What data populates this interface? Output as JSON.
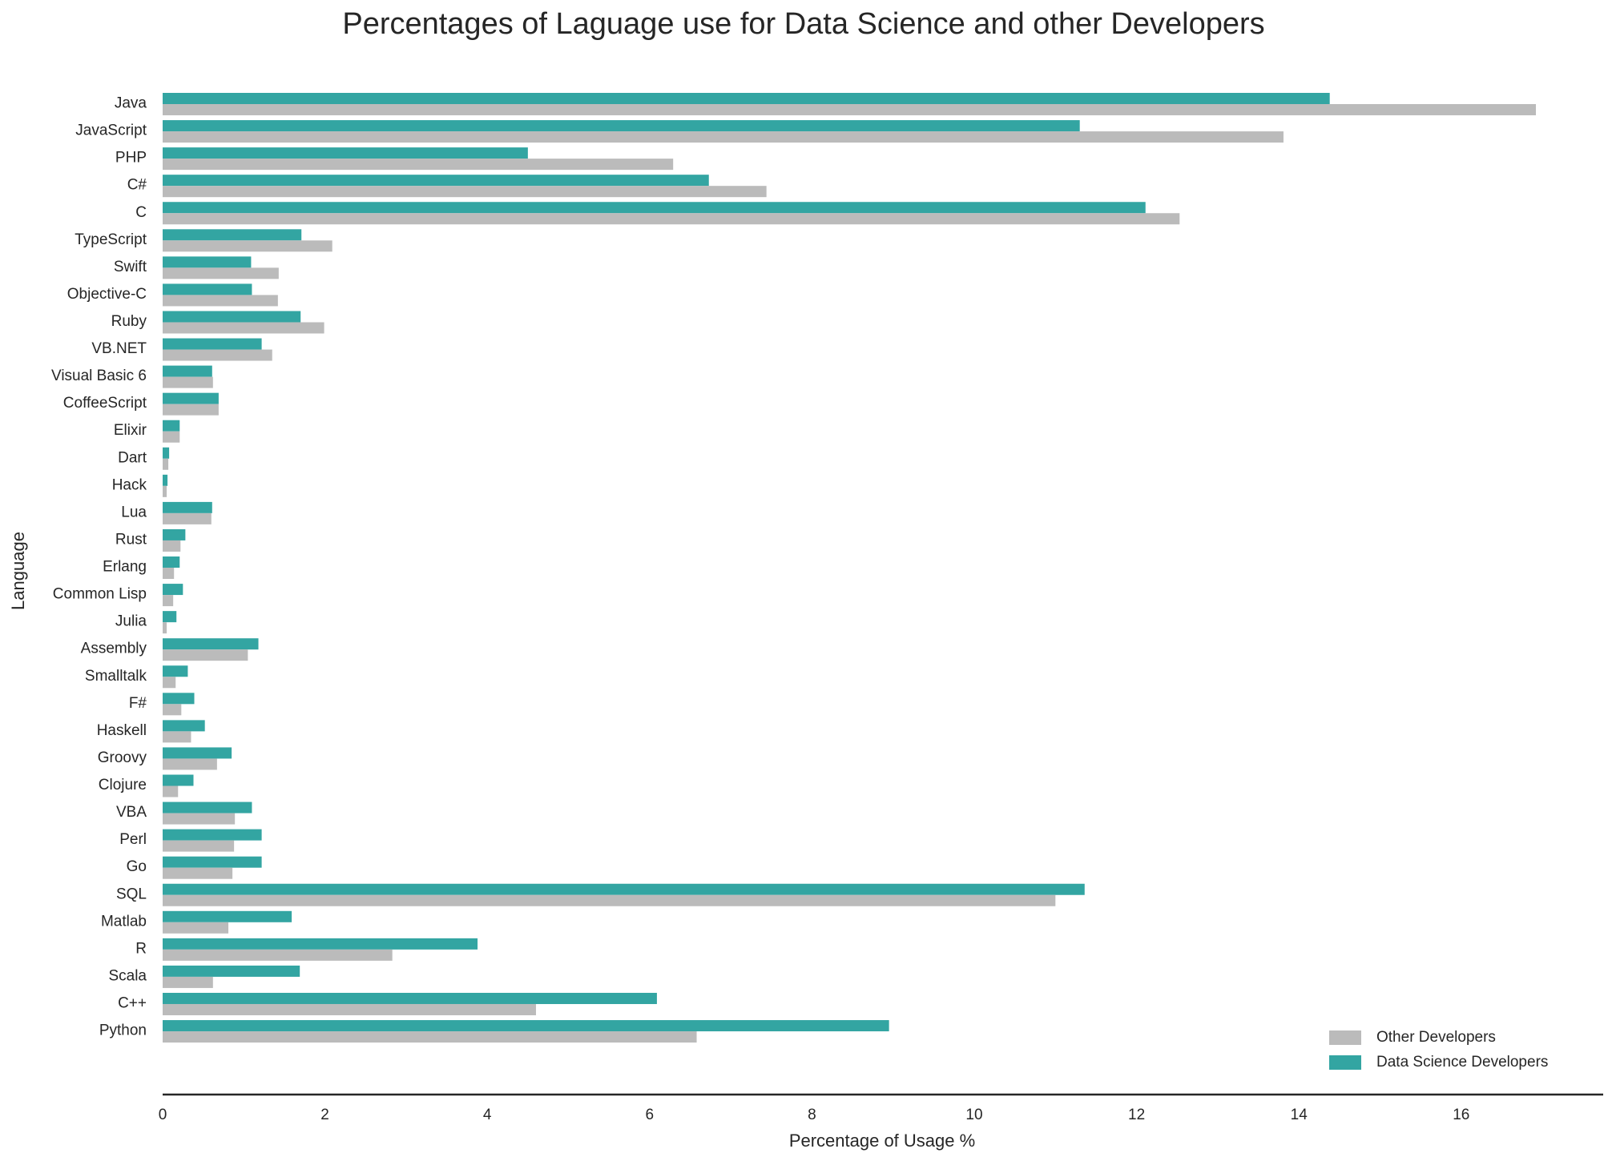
{
  "chart_data": {
    "type": "bar",
    "orientation": "horizontal",
    "title": "Percentages of Laguage use for Data Science and other Developers",
    "xlabel": "Percentage of Usage %",
    "ylabel": "Language",
    "xlim": [
      0,
      17.6
    ],
    "xticks": [
      0,
      2,
      4,
      6,
      8,
      10,
      12,
      14,
      16
    ],
    "grid": false,
    "legend_position": "bottom-right",
    "categories": [
      "Java",
      "JavaScript",
      "PHP",
      "C#",
      "C",
      "TypeScript",
      "Swift",
      "Objective-C",
      "Ruby",
      "VB.NET",
      "Visual Basic 6",
      "CoffeeScript",
      "Elixir",
      "Dart",
      "Hack",
      "Lua",
      "Rust",
      "Erlang",
      "Common Lisp",
      "Julia",
      "Assembly",
      "Smalltalk",
      "F#",
      "Haskell",
      "Groovy",
      "Clojure",
      "VBA",
      "Perl",
      "Go",
      "SQL",
      "Matlab",
      "R",
      "Scala",
      "C++",
      "Python"
    ],
    "series": [
      {
        "name": "Data Science Developers",
        "color": "#33a5a2",
        "values": [
          14.38,
          11.3,
          4.5,
          6.73,
          12.11,
          1.71,
          1.09,
          1.1,
          1.7,
          1.22,
          0.61,
          0.69,
          0.21,
          0.08,
          0.06,
          0.61,
          0.28,
          0.21,
          0.25,
          0.17,
          1.18,
          0.31,
          0.39,
          0.52,
          0.85,
          0.38,
          1.1,
          1.22,
          1.22,
          11.36,
          1.59,
          3.88,
          1.69,
          6.09,
          8.95
        ]
      },
      {
        "name": "Other Developers",
        "color": "#bbbbbb",
        "values": [
          16.92,
          13.81,
          6.29,
          7.44,
          12.53,
          2.09,
          1.43,
          1.42,
          1.99,
          1.35,
          0.62,
          0.69,
          0.21,
          0.07,
          0.05,
          0.6,
          0.22,
          0.14,
          0.13,
          0.05,
          1.05,
          0.16,
          0.23,
          0.35,
          0.67,
          0.19,
          0.89,
          0.88,
          0.86,
          11.0,
          0.81,
          2.83,
          0.62,
          4.6,
          6.58
        ]
      }
    ],
    "legend": [
      {
        "label": "Other Developers",
        "color": "#bbbbbb"
      },
      {
        "label": "Data Science Developers",
        "color": "#33a5a2"
      }
    ]
  }
}
